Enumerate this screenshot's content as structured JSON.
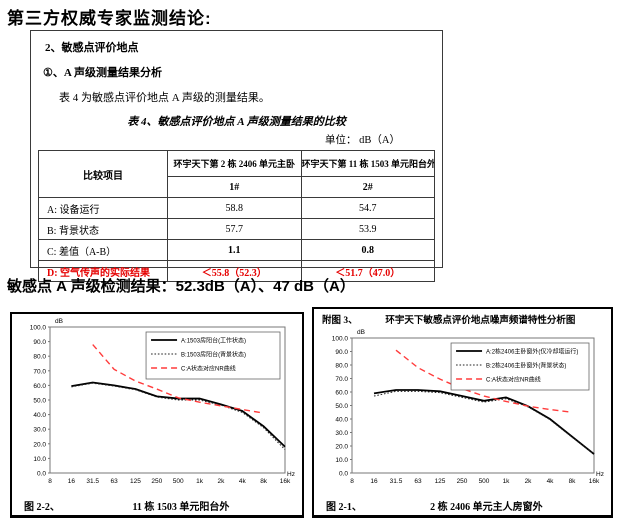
{
  "page": {
    "title": "第三方权威专家监测结论:",
    "result_line": "敏感点 A 声级检测结果：52.3dB（A）、47 dB（A）"
  },
  "section": {
    "heading1": "2、敏感点评价地点",
    "heading2": "①、A 声级测量结果分析",
    "intro": "表 4 为敏感点评价地点 A 声级的测量结果。",
    "table": {
      "title": "表 4、敏感点评价地点 A 声级测量结果的比较",
      "unit": "单位：  dB（A）",
      "compare_header": "比较项目",
      "col1_location": "环宇天下第 2 栋 2406 单元主卧",
      "col1_point": "1#",
      "col2_location": "环宇天下第 11 栋 1503 单元阳台外",
      "col2_point": "2#",
      "rows": [
        {
          "label": "A: 设备运行",
          "v1": "58.8",
          "v2": "54.7"
        },
        {
          "label": "B: 背景状态",
          "v1": "57.7",
          "v2": "53.9"
        },
        {
          "label": "C: 差值（A-B）",
          "v1": "1.1",
          "v2": "0.8"
        },
        {
          "label": "D: 空气传声的实际结果",
          "v1": "＜55.8（52.3）",
          "v2": "＜51.7（47.0）"
        }
      ]
    }
  },
  "chart_data": [
    {
      "type": "line",
      "figure_label": "图 2-2、",
      "caption": "11 栋 1503 单元阳台外",
      "header_label": "",
      "title": "",
      "ylabel": "dB",
      "xlabel": "Hz",
      "ylim": [
        0,
        100
      ],
      "ytick_step": 10,
      "grid": false,
      "legend_position": "top-right",
      "categories": [
        "8",
        "16",
        "31.5",
        "63",
        "125",
        "250",
        "500",
        "1k",
        "2k",
        "4k",
        "8k",
        "16k"
      ],
      "series": [
        {
          "name": "A:1503房阳台(工作状态)",
          "line": "solid",
          "color": "#000000",
          "start_index": 1,
          "values": [
            59.5,
            62,
            60,
            57.5,
            52.5,
            51,
            51,
            47,
            42.5,
            32,
            18
          ]
        },
        {
          "name": "B:1503房阳台(背景状态)",
          "line": "dotted",
          "color": "#222222",
          "start_index": 1,
          "values": [
            59,
            61.5,
            59.5,
            57,
            52,
            50,
            50,
            46.5,
            41.5,
            31,
            16
          ]
        },
        {
          "name": "C:A状态对应NR曲线",
          "line": "dashed",
          "color": "#ff3b3b",
          "start_index": 2,
          "values": [
            88,
            71,
            63,
            57.5,
            51.5,
            48.5,
            46,
            43.5,
            41
          ]
        }
      ]
    },
    {
      "type": "line",
      "figure_label": "图 2-1、",
      "caption": "2 栋 2406 单元主人房窗外",
      "header_label": "附图 3、",
      "title": "环宇天下敏感点评价地点噪声频谱特性分析图",
      "ylabel": "dB",
      "xlabel": "Hz",
      "ylim": [
        0,
        100
      ],
      "ytick_step": 10,
      "grid": false,
      "legend_position": "top-right",
      "categories": [
        "8",
        "16",
        "31.5",
        "63",
        "125",
        "250",
        "500",
        "1k",
        "2k",
        "4k",
        "8k",
        "16k"
      ],
      "series": [
        {
          "name": "A:2栋2406主卧窗外(仅冷却塔运行)",
          "line": "solid",
          "color": "#000000",
          "start_index": 1,
          "values": [
            59,
            61.5,
            61.5,
            60.5,
            57,
            53.5,
            56,
            49.5,
            40,
            27,
            14
          ]
        },
        {
          "name": "B:2栋2406主卧窗外(背景状态)",
          "line": "dotted",
          "color": "#222222",
          "start_index": 1,
          "values": [
            57,
            60.5,
            60.5,
            59.5,
            56,
            52.5,
            55,
            49,
            39.5,
            26.5,
            14
          ]
        },
        {
          "name": "C:A状态对应NR曲线",
          "line": "dashed",
          "color": "#ff3b3b",
          "start_index": 2,
          "values": [
            91,
            78,
            69.5,
            62.5,
            57,
            53,
            49.5,
            47,
            45
          ]
        }
      ]
    }
  ],
  "colors": {
    "alert_red": "#e60000",
    "nr_curve_red": "#ff3b3b",
    "line_black": "#000000",
    "plot_frame_gray": "#777777"
  }
}
